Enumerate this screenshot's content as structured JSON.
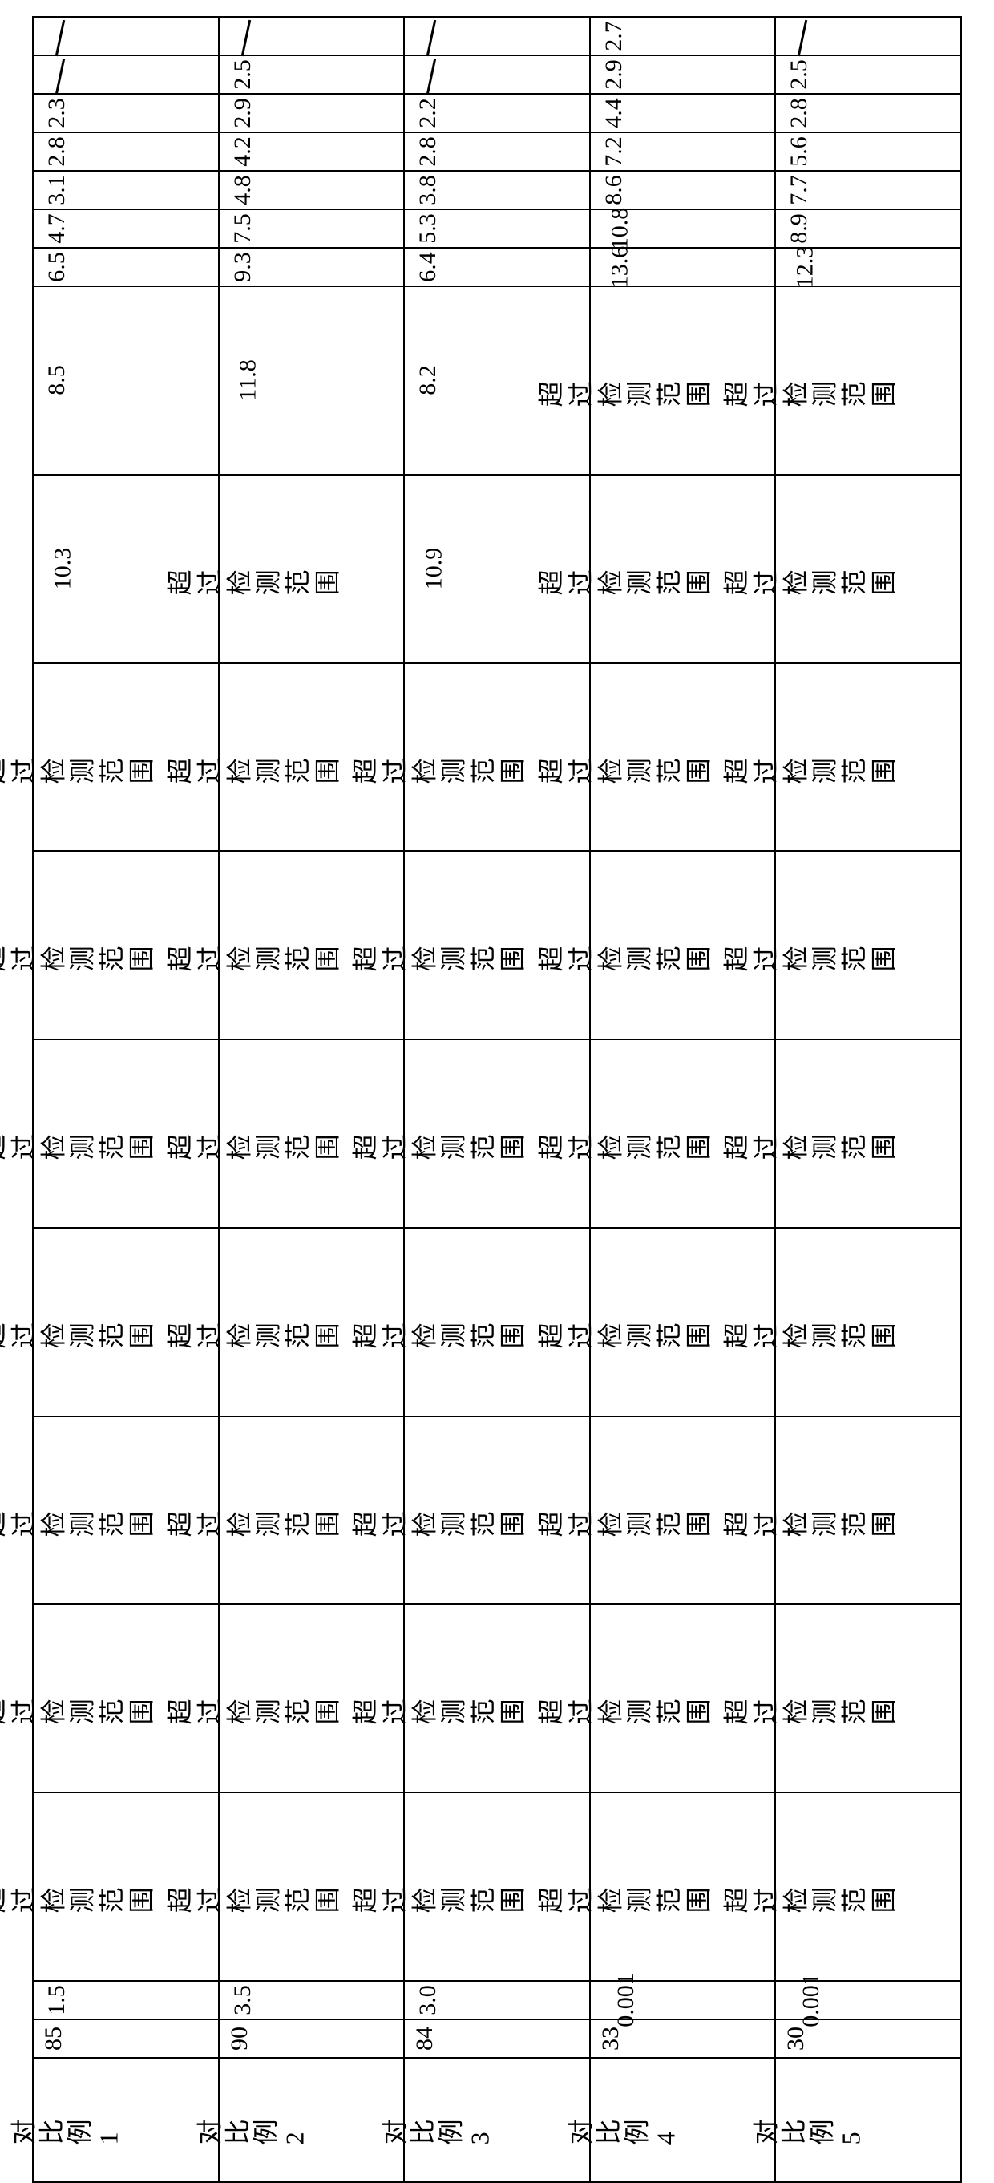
{
  "table": {
    "over_text": "超过检测范围",
    "cols": [
      {
        "label": "对比例 1",
        "c1": "85",
        "c2": "1.5",
        "vals": [
          "OVER",
          "OVER",
          "OVER",
          "OVER",
          "OVER",
          "OVER",
          "OVER",
          "10.3",
          "8.5",
          "6.5",
          "4.7",
          "3.1",
          "2.8",
          "2.3",
          "/",
          "/"
        ]
      },
      {
        "label": "对比例 2",
        "c1": "90",
        "c2": "3.5",
        "vals": [
          "OVER",
          "OVER",
          "OVER",
          "OVER",
          "OVER",
          "OVER",
          "OVER",
          "OVER",
          "11.8",
          "9.3",
          "7.5",
          "4.8",
          "4.2",
          "2.9",
          "2.5",
          "/"
        ]
      },
      {
        "label": "对比例 3",
        "c1": "84",
        "c2": "3.0",
        "vals": [
          "OVER",
          "OVER",
          "OVER",
          "OVER",
          "OVER",
          "OVER",
          "OVER",
          "10.9",
          "8.2",
          "6.4",
          "5.3",
          "3.8",
          "2.8",
          "2.2",
          "/",
          "/"
        ]
      },
      {
        "label": "对比例 4",
        "c1": "33",
        "c2": "0.001",
        "vals": [
          "OVER",
          "OVER",
          "OVER",
          "OVER",
          "OVER",
          "OVER",
          "OVER",
          "OVER",
          "OVER",
          "13.6",
          "10.8",
          "8.6",
          "7.2",
          "4.4",
          "2.9",
          "2.7"
        ]
      },
      {
        "label": "对比例 5",
        "c1": "30",
        "c2": "0.001",
        "vals": [
          "OVER",
          "OVER",
          "OVER",
          "OVER",
          "OVER",
          "OVER",
          "OVER",
          "OVER",
          "OVER",
          "12.3",
          "8.9",
          "7.7",
          "5.6",
          "2.8",
          "2.5",
          "/"
        ]
      }
    ],
    "border_color": "#000000",
    "background_color": "#ffffff",
    "font_size_num": 30,
    "font_size_txt": 32
  }
}
